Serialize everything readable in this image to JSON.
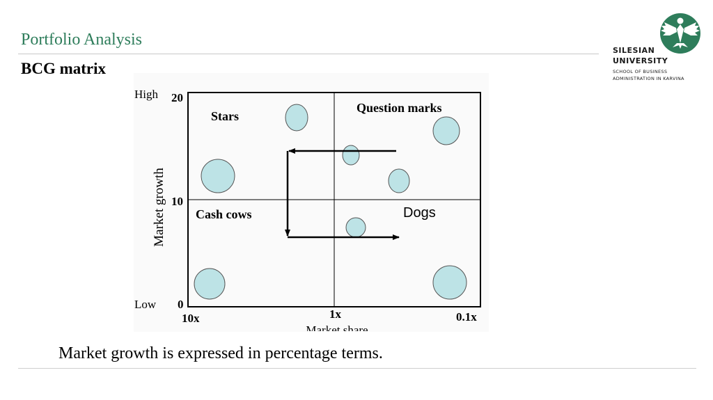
{
  "header": {
    "title": "Portfolio Analysis",
    "subtitle": "BCG matrix"
  },
  "logo": {
    "line1": "SILESIAN",
    "line2": "UNIVERSITY",
    "line3": "SCHOOL OF BUSINESS",
    "line4": "ADMINISTRATION IN KARVINA",
    "color": "#2e7d5b"
  },
  "matrix": {
    "y_axis_title": "Market growth",
    "x_axis_title": "Market share",
    "y_high": "High",
    "y_low": "Low",
    "y_ticks": [
      "20",
      "10",
      "0"
    ],
    "x_ticks": [
      "10x",
      "1x",
      "0.1x"
    ],
    "quadrants": {
      "stars": "Stars",
      "question_marks": "Question marks",
      "cash_cows": "Cash cows",
      "dogs": "Dogs"
    },
    "bubble_color": "#bde3e6"
  },
  "footer": {
    "note": "Market growth is expressed in percentage terms."
  }
}
